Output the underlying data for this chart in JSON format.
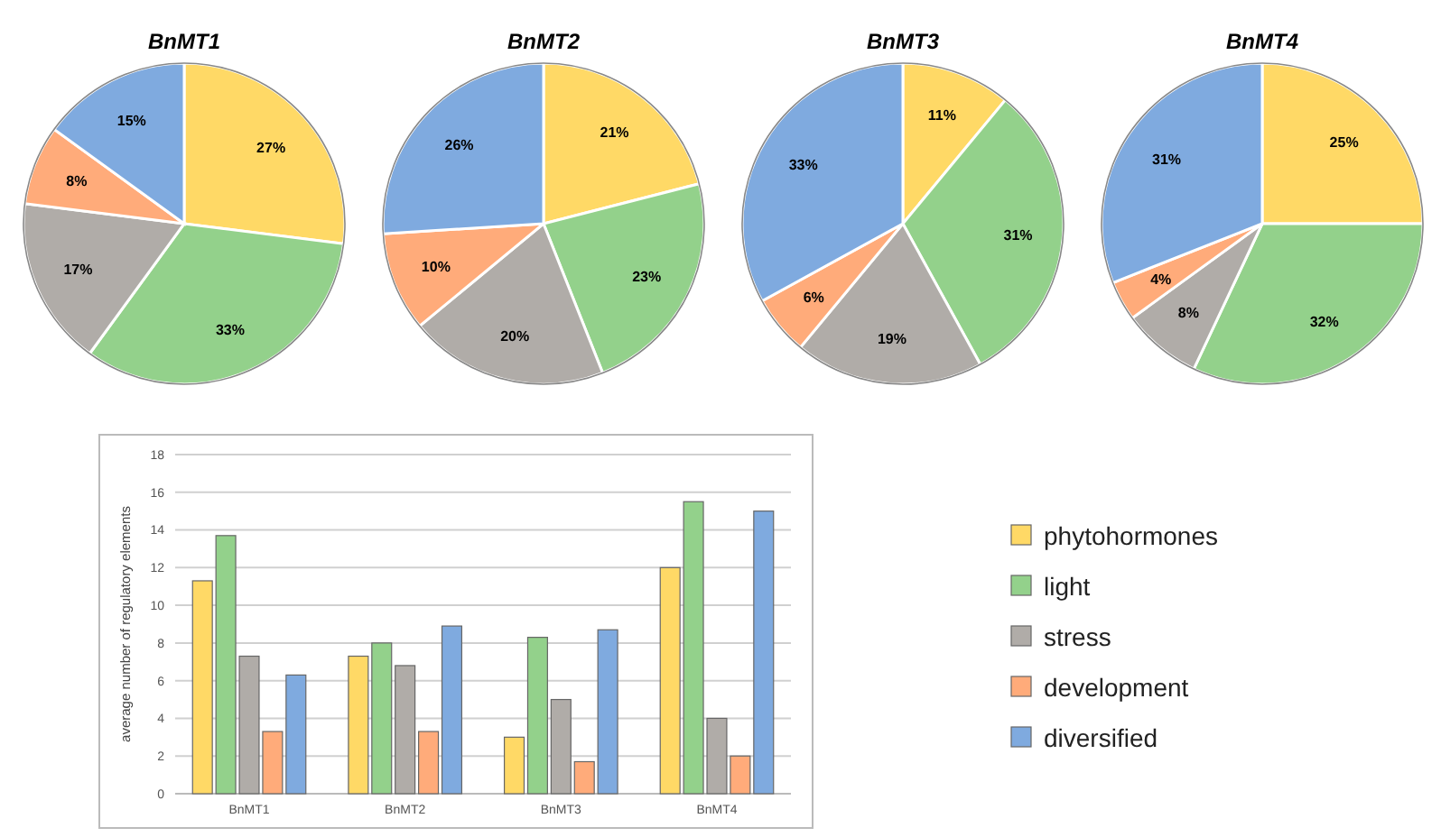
{
  "chart_data": [
    {
      "type": "pie",
      "title": "BnMT1",
      "categories": [
        null,
        null,
        null,
        null,
        null
      ],
      "values": [
        27,
        33,
        17,
        8,
        15
      ],
      "value_labels": [
        "27%",
        "33%",
        "17%",
        "8%",
        "15%"
      ],
      "colors": [
        "#ffd966",
        "#93d18b",
        "#b0aca8",
        "#ffab7a",
        "#7faadf"
      ]
    },
    {
      "type": "pie",
      "title": "BnMT2",
      "categories": [
        null,
        null,
        null,
        null,
        null
      ],
      "values": [
        21,
        23,
        20,
        10,
        26
      ],
      "value_labels": [
        "21%",
        "23%",
        "20%",
        "10%",
        "26%"
      ],
      "colors": [
        "#ffd966",
        "#93d18b",
        "#b0aca8",
        "#ffab7a",
        "#7faadf"
      ]
    },
    {
      "type": "pie",
      "title": "BnMT3",
      "categories": [
        null,
        null,
        null,
        null,
        null
      ],
      "values": [
        11,
        31,
        19,
        6,
        33
      ],
      "value_labels": [
        "11%",
        "31%",
        "19%",
        "6%",
        "33%"
      ],
      "colors": [
        "#ffd966",
        "#93d18b",
        "#b0aca8",
        "#ffab7a",
        "#7faadf"
      ]
    },
    {
      "type": "pie",
      "title": "BnMT4",
      "categories": [
        null,
        null,
        null,
        null,
        null
      ],
      "values": [
        25,
        32,
        8,
        4,
        31
      ],
      "value_labels": [
        "25%",
        "32%",
        "8%",
        "4%",
        "31%"
      ],
      "colors": [
        "#ffd966",
        "#93d18b",
        "#b0aca8",
        "#ffab7a",
        "#7faadf"
      ]
    },
    {
      "type": "bar",
      "ylabel": "average number of regulatory elements",
      "categories": [
        "BnMT1",
        "BnMT2",
        "BnMT3",
        "BnMT4"
      ],
      "ylim": [
        0,
        18
      ],
      "yticks": [
        0,
        2,
        4,
        6,
        8,
        10,
        12,
        14,
        16,
        18
      ],
      "grid": "y",
      "legend": "right",
      "series": [
        {
          "name": "phytohormones",
          "color": "#ffd966",
          "values": [
            11.3,
            7.3,
            3.0,
            12.0
          ]
        },
        {
          "name": "light",
          "color": "#93d18b",
          "values": [
            13.7,
            8.0,
            8.3,
            15.5
          ]
        },
        {
          "name": "stress",
          "color": "#b0aca8",
          "values": [
            7.3,
            6.8,
            5.0,
            4.0
          ]
        },
        {
          "name": "development",
          "color": "#ffab7a",
          "values": [
            3.3,
            3.3,
            1.7,
            2.0
          ]
        },
        {
          "name": "diversified",
          "color": "#7faadf",
          "values": [
            6.3,
            8.9,
            8.7,
            15.0
          ]
        }
      ]
    }
  ]
}
